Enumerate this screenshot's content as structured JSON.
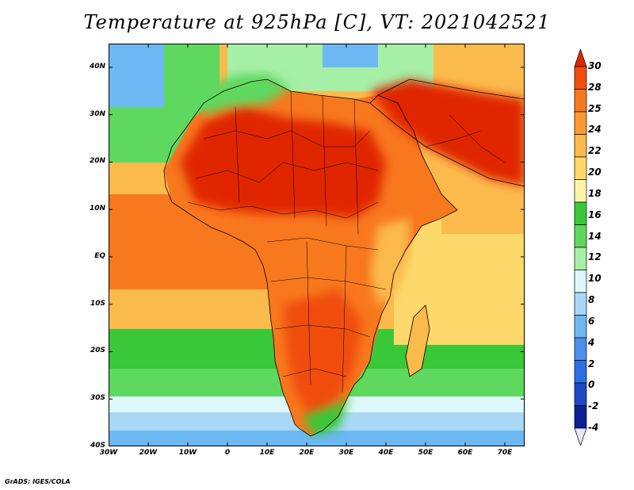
{
  "title": "Temperature at 925hPa [C], VT: 2021042521",
  "footer": "GrADS: IGES/COLA",
  "map": {
    "lon_range": [
      -30,
      75
    ],
    "lat_range": [
      -40,
      45
    ],
    "lat_ticks": [
      "40N",
      "30N",
      "20N",
      "10N",
      "EQ",
      "10S",
      "20S",
      "30S",
      "40S"
    ],
    "lat_values": [
      40,
      30,
      20,
      10,
      0,
      -10,
      -20,
      -30,
      -40
    ],
    "lon_ticks": [
      "30W",
      "20W",
      "10W",
      "0",
      "10E",
      "20E",
      "30E",
      "40E",
      "50E",
      "60E",
      "70E"
    ],
    "lon_values": [
      -30,
      -20,
      -10,
      0,
      10,
      20,
      30,
      40,
      50,
      60,
      70
    ]
  },
  "colorbar": {
    "labels": [
      "30",
      "28",
      "25",
      "24",
      "22",
      "20",
      "18",
      "16",
      "14",
      "12",
      "10",
      "8",
      "6",
      "4",
      "2",
      "0",
      "-2",
      "-4"
    ],
    "colors_top_to_bottom": [
      "#e02800",
      "#f04e0a",
      "#f8781e",
      "#fa9a32",
      "#fbba4c",
      "#fdd86a",
      "#fcf5a8",
      "#38c838",
      "#5ed85e",
      "#a6efa6",
      "#ddf8f8",
      "#a8d8f5",
      "#6cb8f2",
      "#4a90ec",
      "#2f6fe4",
      "#1d49c8",
      "#0e2096",
      "#0a0a6a"
    ],
    "units": "C"
  }
}
